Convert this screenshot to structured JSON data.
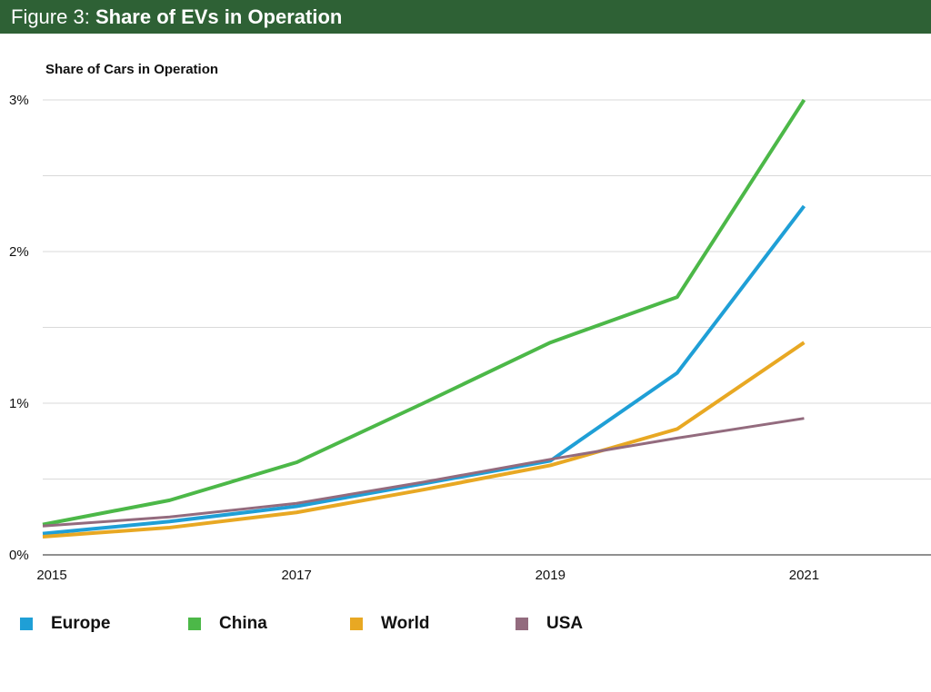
{
  "header": {
    "prefix": "Figure 3:",
    "title": "Share of EVs in Operation"
  },
  "chart_data": {
    "type": "line",
    "title": "Share of EVs in Operation",
    "ylabel": "Share of Cars in Operation",
    "xlabel": "",
    "x": [
      2015,
      2016,
      2017,
      2018,
      2019,
      2020,
      2021
    ],
    "xlim": [
      2015,
      2022
    ],
    "ylim": [
      0,
      3
    ],
    "x_ticks": [
      "2015",
      "2017",
      "2019",
      "2021"
    ],
    "y_ticks": [
      "0%",
      "1%",
      "2%",
      "3%"
    ],
    "grid": "horizontal every 0.5%",
    "legend_position": "bottom",
    "series": [
      {
        "name": "Europe",
        "color": "#1f9fd6",
        "values": [
          0.14,
          0.22,
          0.32,
          0.47,
          0.62,
          1.2,
          2.3
        ]
      },
      {
        "name": "China",
        "color": "#4cb848",
        "values": [
          0.2,
          0.36,
          0.61,
          1.0,
          1.4,
          1.7,
          3.0
        ]
      },
      {
        "name": "World",
        "color": "#e8a823",
        "values": [
          0.12,
          0.18,
          0.28,
          0.43,
          0.59,
          0.83,
          1.4
        ]
      },
      {
        "name": "USA",
        "color": "#936b7e",
        "values": [
          0.19,
          0.25,
          0.34,
          0.48,
          0.63,
          0.77,
          0.9
        ]
      }
    ]
  }
}
